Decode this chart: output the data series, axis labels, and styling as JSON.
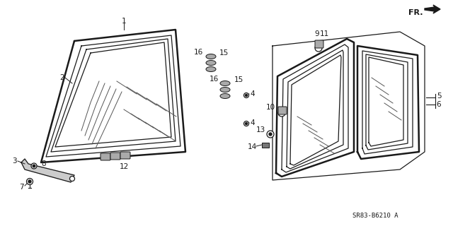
{
  "bg_color": "#ffffff",
  "diagram_code": "SR83-B6210 A",
  "fr_label": "FR.",
  "line_color": "#1a1a1a",
  "gray_color": "#888888",
  "hatch_color": "#555555"
}
